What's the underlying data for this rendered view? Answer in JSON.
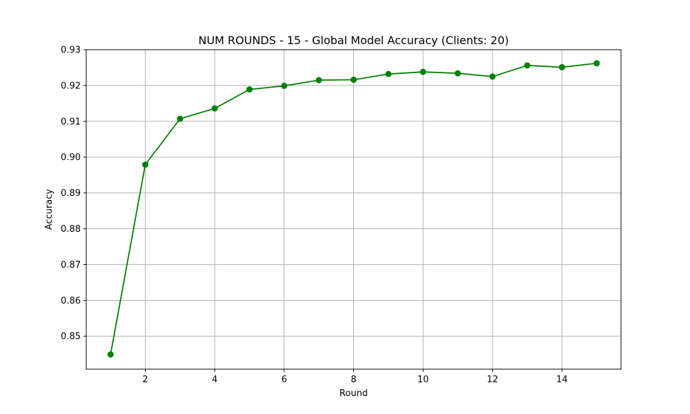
{
  "chart_data": {
    "type": "line",
    "title": "NUM ROUNDS - 15 - Global Model Accuracy (Clients: 20)",
    "xlabel": "Round",
    "ylabel": "Accuracy",
    "x": [
      1,
      2,
      3,
      4,
      5,
      6,
      7,
      8,
      9,
      10,
      11,
      12,
      13,
      14,
      15
    ],
    "series": [
      {
        "values": [
          0.8449,
          0.8979,
          0.9107,
          0.9136,
          0.9189,
          0.9199,
          0.9215,
          0.9216,
          0.9232,
          0.9238,
          0.9234,
          0.9225,
          0.9256,
          0.9251,
          0.9262
        ],
        "color": "#008000",
        "marker": "circle"
      }
    ],
    "xlim": [
      0.3,
      15.7
    ],
    "ylim": [
      0.8408,
      0.93
    ],
    "xticks": [
      "2",
      "4",
      "6",
      "8",
      "10",
      "12",
      "14"
    ],
    "xtick_values": [
      2,
      4,
      6,
      8,
      10,
      12,
      14
    ],
    "yticks": [
      "0.85",
      "0.86",
      "0.87",
      "0.88",
      "0.89",
      "0.90",
      "0.91",
      "0.92",
      "0.93"
    ],
    "ytick_values": [
      0.85,
      0.86,
      0.87,
      0.88,
      0.89,
      0.9,
      0.91,
      0.92,
      0.93
    ],
    "grid": true,
    "grid_color": "#b0b0b0"
  }
}
